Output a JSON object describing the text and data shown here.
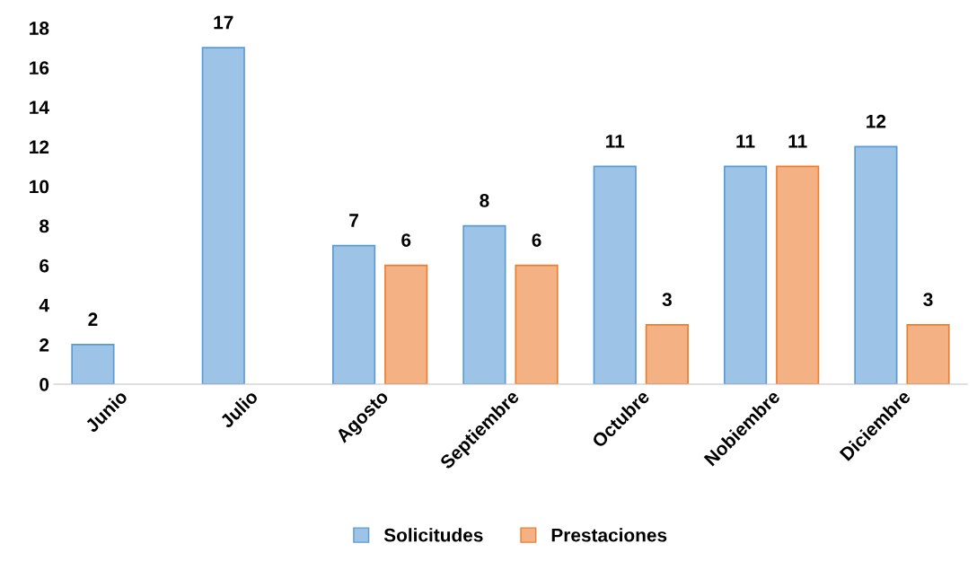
{
  "chart_data": {
    "type": "bar",
    "categories": [
      "Junio",
      "Julio",
      "Agosto",
      "Septiembre",
      "Octubre",
      "Nobiembre",
      "Diciembre"
    ],
    "series": [
      {
        "name": "Solicitudes",
        "color": "#9dc3e6",
        "values": [
          2,
          17,
          7,
          8,
          11,
          11,
          12
        ]
      },
      {
        "name": "Prestaciones",
        "color": "#f4b183",
        "values": [
          null,
          null,
          6,
          6,
          3,
          11,
          3
        ]
      }
    ],
    "ylim": [
      0,
      18
    ],
    "yticks": [
      0,
      2,
      4,
      6,
      8,
      10,
      12,
      14,
      16,
      18
    ],
    "data_labels": true,
    "grid": false,
    "legend": "bottom"
  }
}
